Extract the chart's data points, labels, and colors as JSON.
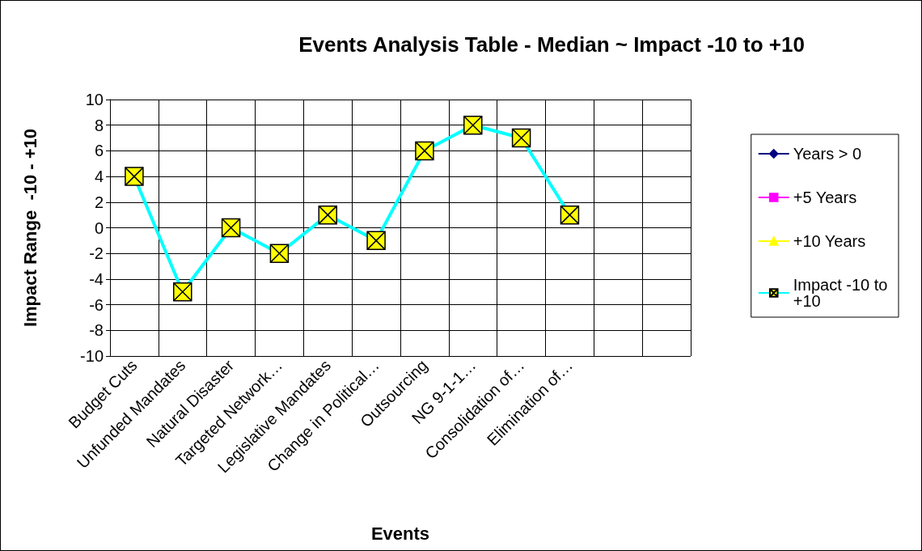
{
  "chart_data": {
    "type": "line",
    "title": "Events Analysis Table - Median ~ Impact -10 to +10",
    "xlabel": "Events",
    "ylabel": "Impact Range  -10 - +10",
    "categories": [
      "Budget Cuts",
      "Unfunded Mandates",
      "Natural Disaster",
      "Targeted Network…",
      "Legislative Mandates",
      "Change in Political…",
      "Outsourcing",
      "NG 9-1-1…",
      "Consolidation of…",
      "Elimination of…",
      null,
      null
    ],
    "series": [
      {
        "name": "Years > 0",
        "color": "#000080",
        "marker": "diamond",
        "values": [
          null,
          null,
          null,
          null,
          null,
          null,
          null,
          null,
          null,
          null,
          null,
          null
        ]
      },
      {
        "name": "+5 Years",
        "color": "#ff00ff",
        "marker": "square",
        "values": [
          null,
          null,
          null,
          null,
          null,
          null,
          null,
          null,
          null,
          null,
          null,
          null
        ]
      },
      {
        "name": "+10 Years",
        "color": "#ffff00",
        "marker": "triangle",
        "values": [
          null,
          null,
          null,
          null,
          null,
          null,
          null,
          null,
          null,
          null,
          null,
          null
        ]
      },
      {
        "name": "Impact -10 to +10",
        "color": "#00ffff",
        "marker": "cross",
        "values": [
          4,
          -5,
          0,
          -2,
          1,
          -1,
          6,
          8,
          7,
          1,
          null,
          null
        ]
      }
    ],
    "ylim": [
      -10,
      10
    ],
    "yticks": [
      -10,
      -8,
      -6,
      -4,
      -2,
      0,
      2,
      4,
      6,
      8,
      10
    ],
    "grid": true,
    "legend": "right"
  }
}
